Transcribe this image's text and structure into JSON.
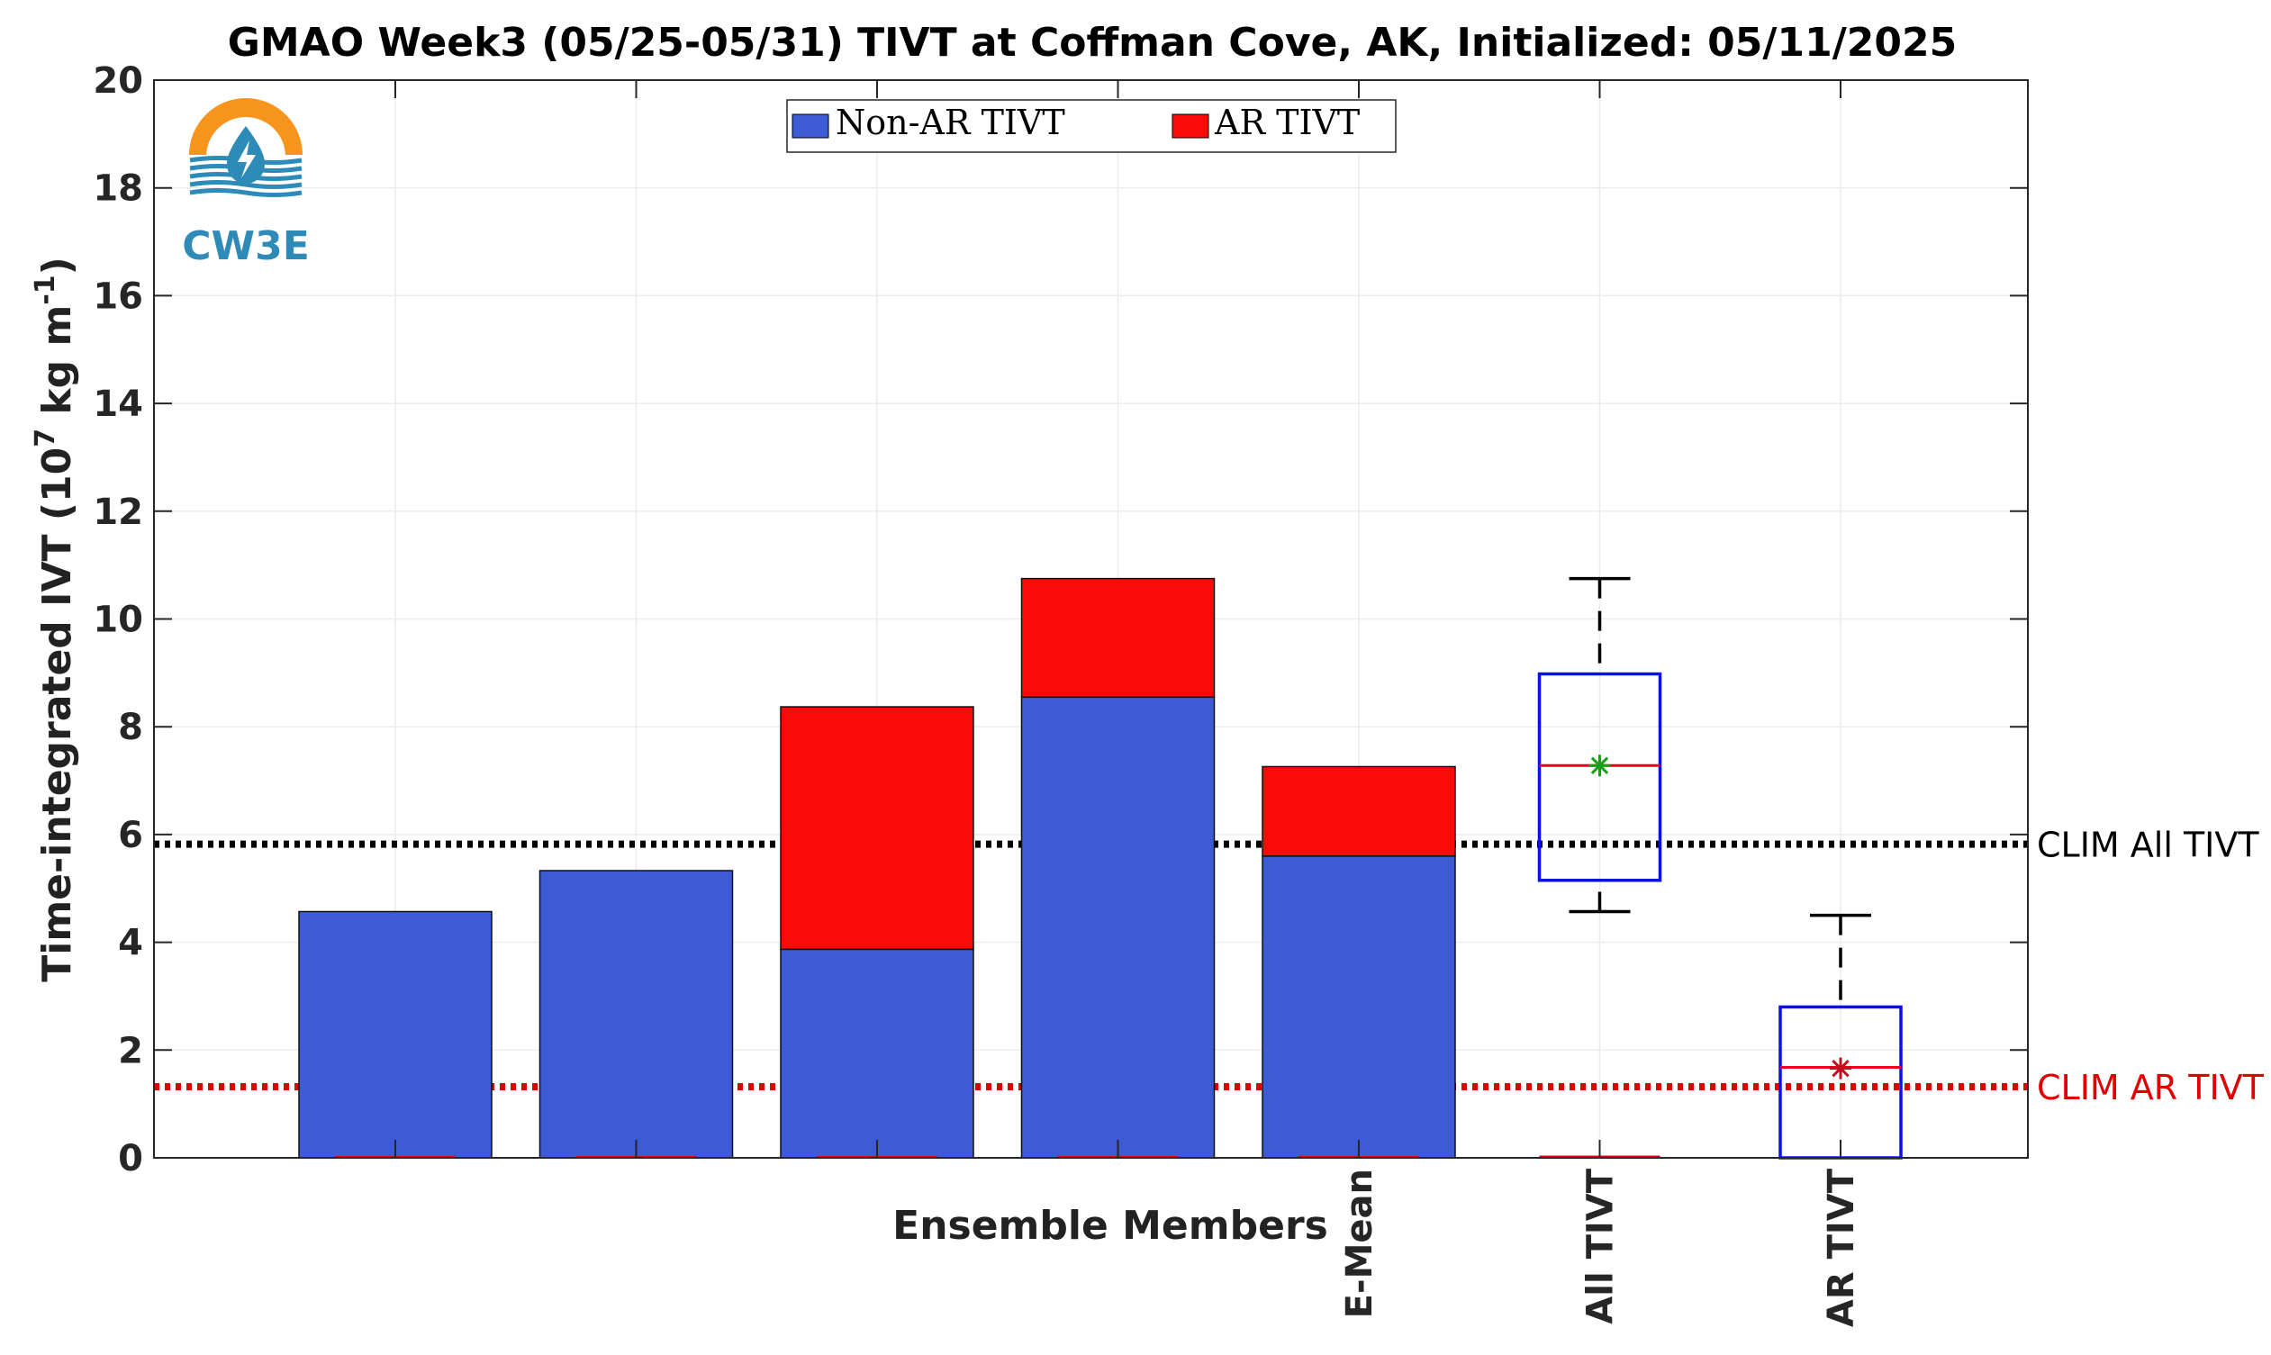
{
  "chart_data": {
    "type": "bar",
    "title": "GMAO Week3 (05/25-05/31) TIVT at Coffman Cove, AK, Initialized: 05/11/2025",
    "ylabel_main": "Time-integrated IVT (10",
    "ylabel_exp": "7",
    "ylabel_mid": " kg m",
    "ylabel_exp2": "-1",
    "ylabel_end": ")",
    "xlabel": "Ensemble Members",
    "ylim": [
      0,
      20
    ],
    "yticks": [
      "0",
      "2",
      "4",
      "6",
      "8",
      "10",
      "12",
      "14",
      "16",
      "18",
      "20"
    ],
    "xtick_labels": [
      "E-Mean",
      "All TIVT",
      "AR TIVT"
    ],
    "grid": true,
    "legend_position": "top-center",
    "series": [
      {
        "name": "Non-AR TIVT",
        "color": "#3c5bd4",
        "values": [
          4.57,
          5.33,
          3.87,
          8.55,
          5.6
        ]
      },
      {
        "name": "AR TIVT",
        "color": "#fb0a0a",
        "values": [
          0,
          0,
          4.5,
          2.2,
          1.66
        ]
      }
    ],
    "boxplots": [
      {
        "label": "All TIVT",
        "min": 4.57,
        "q1": 5.15,
        "median": 7.28,
        "q3": 8.98,
        "max": 10.75,
        "mean": 7.28,
        "mean_color": "#17a017"
      },
      {
        "label": "AR TIVT",
        "min": 0,
        "q1": 0,
        "median": 1.68,
        "q3": 2.8,
        "max": 4.5,
        "mean": 1.66,
        "mean_color": "#c4101c"
      }
    ],
    "reference_lines": [
      {
        "label": "CLIM All TIVT",
        "value": 5.82,
        "color": "#000000"
      },
      {
        "label": "CLIM AR TIVT",
        "value": 1.32,
        "color": "#e00000"
      }
    ]
  },
  "logo": {
    "text": "CW3E",
    "accent": "#f7941d",
    "primary": "#2e8bb8"
  }
}
